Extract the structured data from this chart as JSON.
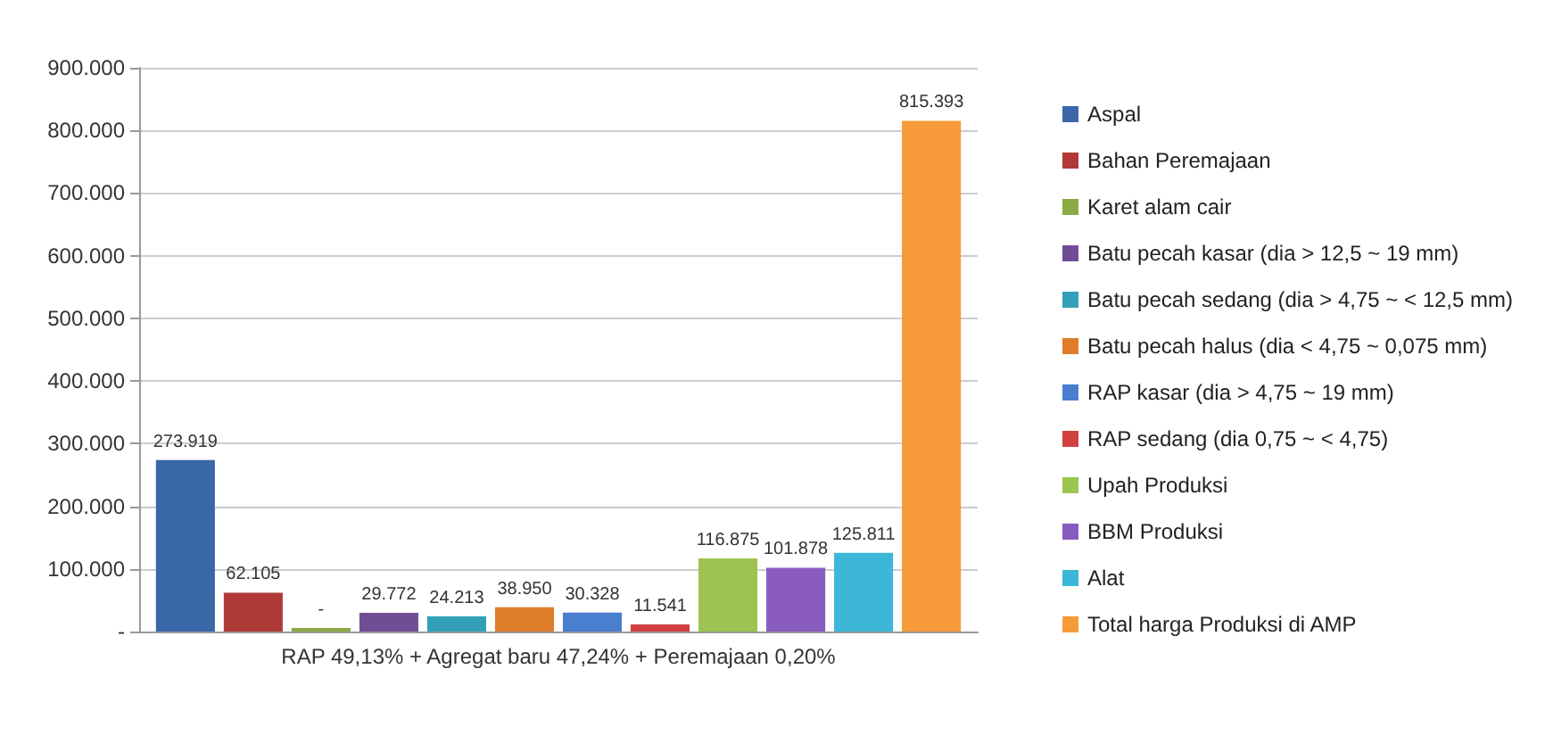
{
  "chart_data": {
    "type": "bar",
    "categories": [
      "RAP 49,13% + Agregat baru 47,24% + Peremajaan 0,20%"
    ],
    "series": [
      {
        "name": "Aspal",
        "color": "#3a67a8",
        "values": [
          273919
        ],
        "value_labels": [
          "273.919"
        ]
      },
      {
        "name": "Bahan Peremajaan",
        "color": "#b03a37",
        "values": [
          62105
        ],
        "value_labels": [
          "62.105"
        ]
      },
      {
        "name": "Karet alam cair",
        "color": "#8aab41",
        "values": [
          0
        ],
        "value_labels": [
          "-"
        ]
      },
      {
        "name": "Batu pecah kasar (dia > 12,5 ~ 19 mm)",
        "color": "#6e4f94",
        "values": [
          29772
        ],
        "value_labels": [
          "29.772"
        ]
      },
      {
        "name": "Batu pecah sedang (dia > 4,75 ~ < 12,5 mm)",
        "color": "#33a0b8",
        "values": [
          24213
        ],
        "value_labels": [
          "24.213"
        ]
      },
      {
        "name": "Batu pecah halus (dia < 4,75 ~ 0,075 mm)",
        "color": "#e07d2a",
        "values": [
          38950
        ],
        "value_labels": [
          "38.950"
        ]
      },
      {
        "name": "RAP kasar (dia > 4,75 ~ 19 mm)",
        "color": "#4a7fd0",
        "values": [
          30328
        ],
        "value_labels": [
          "30.328"
        ]
      },
      {
        "name": "RAP sedang (dia 0,75 ~ < 4,75)",
        "color": "#d04040",
        "values": [
          11541
        ],
        "value_labels": [
          "11.541"
        ]
      },
      {
        "name": "Upah Produksi",
        "color": "#9dc451",
        "values": [
          116875
        ],
        "value_labels": [
          "116.875"
        ]
      },
      {
        "name": "BBM Produksi",
        "color": "#8a5cbf",
        "values": [
          101878
        ],
        "value_labels": [
          "101.878"
        ]
      },
      {
        "name": "Alat",
        "color": "#3cb7d8",
        "values": [
          125811
        ],
        "value_labels": [
          "125.811"
        ]
      },
      {
        "name": "Total harga Produksi di AMP",
        "color": "#f79a3a",
        "values": [
          815393
        ],
        "value_labels": [
          "815.393"
        ]
      }
    ],
    "ylim": [
      0,
      900000
    ],
    "yticks": [
      {
        "value": 0,
        "label": "-"
      },
      {
        "value": 100000,
        "label": "100.000"
      },
      {
        "value": 200000,
        "label": "200.000"
      },
      {
        "value": 300000,
        "label": "300.000"
      },
      {
        "value": 400000,
        "label": "400.000"
      },
      {
        "value": 500000,
        "label": "500.000"
      },
      {
        "value": 600000,
        "label": "600.000"
      },
      {
        "value": 700000,
        "label": "700.000"
      },
      {
        "value": 800000,
        "label": "800.000"
      },
      {
        "value": 900000,
        "label": "900.000"
      }
    ],
    "grid": "y",
    "legend": "right"
  }
}
